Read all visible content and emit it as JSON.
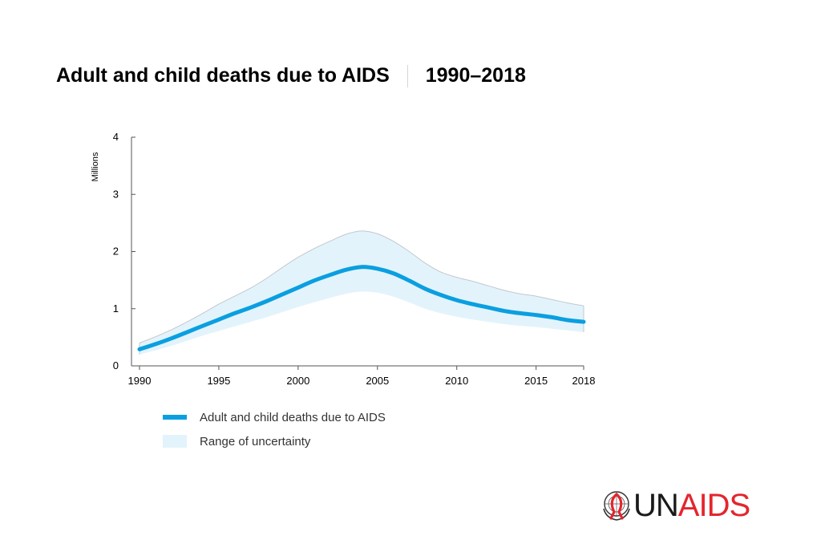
{
  "header": {
    "title": "Adult and child deaths due to AIDS",
    "period": "1990–2018"
  },
  "chart_data": {
    "type": "line",
    "title": "Adult and child deaths due to AIDS",
    "ylabel": "Millions",
    "xlabel": "",
    "xlim": [
      1990,
      2018
    ],
    "ylim": [
      0,
      4
    ],
    "x_ticks": [
      1990,
      1995,
      2000,
      2005,
      2010,
      2015,
      2018
    ],
    "y_ticks": [
      0,
      1,
      2,
      3,
      4
    ],
    "x": [
      1990,
      1991,
      1992,
      1993,
      1994,
      1995,
      1996,
      1997,
      1998,
      1999,
      2000,
      2001,
      2002,
      2003,
      2004,
      2005,
      2006,
      2007,
      2008,
      2009,
      2010,
      2011,
      2012,
      2013,
      2014,
      2015,
      2016,
      2017,
      2018
    ],
    "series": [
      {
        "name": "Adult and child deaths due to AIDS",
        "type": "line",
        "color": "#0a9fe0",
        "values": [
          0.29,
          0.38,
          0.48,
          0.59,
          0.7,
          0.81,
          0.92,
          1.02,
          1.13,
          1.25,
          1.37,
          1.49,
          1.59,
          1.68,
          1.73,
          1.7,
          1.62,
          1.49,
          1.35,
          1.24,
          1.15,
          1.08,
          1.02,
          0.96,
          0.92,
          0.89,
          0.85,
          0.8,
          0.77
        ]
      },
      {
        "name": "Range of uncertainty",
        "type": "band",
        "color": "#e3f3fc",
        "lower": [
          0.2,
          0.27,
          0.35,
          0.44,
          0.53,
          0.61,
          0.69,
          0.77,
          0.85,
          0.94,
          1.03,
          1.11,
          1.19,
          1.26,
          1.3,
          1.28,
          1.21,
          1.11,
          1.0,
          0.92,
          0.86,
          0.81,
          0.77,
          0.73,
          0.7,
          0.68,
          0.65,
          0.62,
          0.59
        ],
        "upper": [
          0.4,
          0.51,
          0.63,
          0.77,
          0.92,
          1.08,
          1.22,
          1.36,
          1.53,
          1.72,
          1.9,
          2.05,
          2.18,
          2.3,
          2.36,
          2.31,
          2.18,
          2.0,
          1.8,
          1.64,
          1.55,
          1.48,
          1.4,
          1.32,
          1.26,
          1.22,
          1.16,
          1.1,
          1.05
        ]
      }
    ],
    "legend": [
      "Adult and child deaths due to AIDS",
      "Range of uncertainty"
    ],
    "legend_position": "bottom-left",
    "grid": false
  },
  "logo": {
    "un": "UN",
    "aids": "AIDS",
    "ribbon_color": "#e4252d"
  }
}
